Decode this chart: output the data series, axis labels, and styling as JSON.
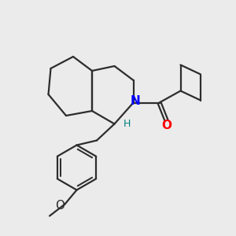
{
  "background_color": "#ebebeb",
  "bond_color": "#2d2d2d",
  "N_color": "#0000ff",
  "O_color": "#ff0000",
  "H_color": "#008080",
  "label_N": "N",
  "label_H": "H",
  "label_O_carbonyl": "O",
  "label_O_methoxy": "O",
  "figsize": [
    3.0,
    3.0
  ],
  "dpi": 100
}
